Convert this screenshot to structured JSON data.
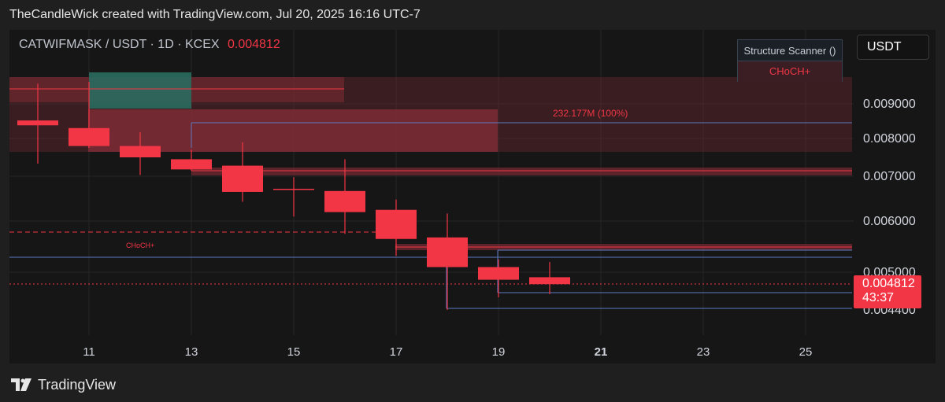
{
  "header": {
    "text": "TheCandleWick created with TradingView.com, Jul 20, 2025 16:16 UTC-7"
  },
  "symbol": {
    "pair": "CATWIFMASK / USDT · 1D · KCEX",
    "last_price": "0.004812"
  },
  "scanner": {
    "title": "Structure Scanner ()",
    "value": "CHoCH+"
  },
  "currency_button": "USDT",
  "price_tag": {
    "price": "0.004812",
    "countdown": "43:37"
  },
  "footer": {
    "brand": "TradingView"
  },
  "colors": {
    "bear": "#f23645",
    "bull_zone": "#2a6b5f",
    "zone": "#7a2b33",
    "blue_line": "#5d7ac4",
    "background": "#161616"
  },
  "chart_data": {
    "type": "candlestick",
    "x_ticks": [
      "11",
      "13",
      "15",
      "17",
      "19",
      "21",
      "23",
      "25"
    ],
    "y_ticks": [
      "0.009000",
      "0.008000",
      "0.007000",
      "0.006000",
      "0.005000",
      "0.004400"
    ],
    "candles": [
      {
        "day": 10,
        "open": 0.00852,
        "high": 0.00955,
        "low": 0.00733,
        "close": 0.00838
      },
      {
        "day": 11,
        "open": 0.0083,
        "high": 0.0096,
        "low": 0.00775,
        "close": 0.0078
      },
      {
        "day": 12,
        "open": 0.0078,
        "high": 0.00818,
        "low": 0.00703,
        "close": 0.0075
      },
      {
        "day": 13,
        "open": 0.00745,
        "high": 0.0077,
        "low": 0.00715,
        "close": 0.00718
      },
      {
        "day": 14,
        "open": 0.00728,
        "high": 0.0079,
        "low": 0.00643,
        "close": 0.00665
      },
      {
        "day": 15,
        "open": 0.00672,
        "high": 0.00698,
        "low": 0.0061,
        "close": 0.0067
      },
      {
        "day": 16,
        "open": 0.00667,
        "high": 0.00745,
        "low": 0.00575,
        "close": 0.0062
      },
      {
        "day": 17,
        "open": 0.00625,
        "high": 0.00648,
        "low": 0.00532,
        "close": 0.00565
      },
      {
        "day": 18,
        "open": 0.00568,
        "high": 0.00617,
        "low": 0.0044,
        "close": 0.0051
      },
      {
        "day": 19,
        "open": 0.0051,
        "high": 0.00525,
        "low": 0.0046,
        "close": 0.00488
      },
      {
        "day": 20,
        "open": 0.00492,
        "high": 0.0052,
        "low": 0.00465,
        "close": 0.00481
      }
    ],
    "annotations": {
      "volume_label": "232.177M (100%)",
      "choch_label": "CHoCH+"
    }
  }
}
